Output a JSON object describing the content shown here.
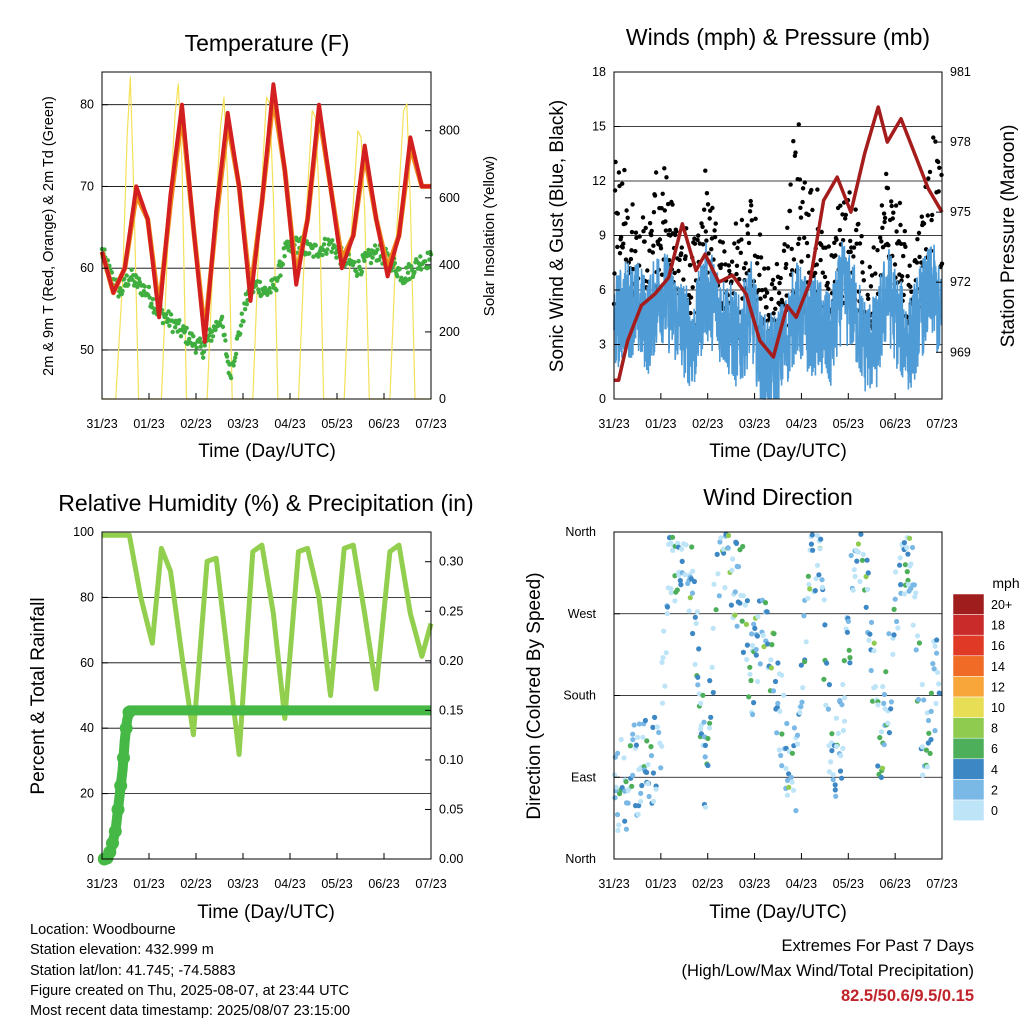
{
  "colors": {
    "temp2m": "#d31f1f",
    "temp9m": "#f08a1c",
    "dewpoint": "#3fae3f",
    "solar": "#f4e15a",
    "wind": "#4f9bd6",
    "gust": "#000000",
    "pressure": "#a51c1c",
    "rh": "#92cf4f",
    "precip": "#45b845",
    "extremes": "#c0232b"
  },
  "x_ticks": [
    "31/23",
    "01/23",
    "02/23",
    "03/23",
    "04/23",
    "05/23",
    "06/23",
    "07/23"
  ],
  "footer": {
    "location": "Location: Woodbourne",
    "elevation": "Station elevation: 432.999 m",
    "latlon": "Station lat/lon: 41.745; -74.5883",
    "created": "Figure created on Thu, 2025-08-07, at 23:44 UTC",
    "timestamp": "Most recent data timestamp: 2025/08/07 23:15:00"
  },
  "extremes": {
    "title": "Extremes For Past 7 Days",
    "subtitle": "(High/Low/Max Wind/Total Precipitation)",
    "values": "82.5/50.6/9.5/0.15"
  },
  "chart_data": [
    {
      "type": "line",
      "title": "Temperature (F)",
      "xlabel": "Time (Day/UTC)",
      "ylabel": "2m & 9m T (Red, Orange) & 2m Td (Green)",
      "y2label": "Solar Insolation (Yellow)",
      "ylim": [
        44,
        84
      ],
      "y_ticks": [
        50,
        60,
        70,
        80
      ],
      "y2lim": [
        0,
        975
      ],
      "y2_ticks": [
        0,
        200,
        400,
        600,
        800
      ],
      "grid": true,
      "x_days": [
        0,
        1,
        2,
        3,
        4,
        5,
        6,
        7
      ],
      "series": [
        {
          "key": "t2m",
          "x": [
            0,
            0.25,
            0.5,
            0.75,
            1,
            1.25,
            1.5,
            1.75,
            2,
            2.25,
            2.5,
            2.75,
            3,
            3.25,
            3.5,
            3.75,
            4,
            4.25,
            4.5,
            4.75,
            5,
            5.25,
            5.5,
            5.75,
            6,
            6.25,
            6.5,
            6.75,
            7,
            7.2
          ],
          "values": [
            62,
            57,
            60,
            70,
            66,
            54,
            69,
            80,
            65,
            51,
            67,
            79,
            70,
            56,
            68,
            82.5,
            72,
            58,
            66,
            80,
            70,
            60,
            64,
            75,
            66,
            59,
            64,
            76,
            70,
            70
          ]
        },
        {
          "key": "t9m",
          "x": [
            0,
            0.25,
            0.5,
            0.75,
            1,
            1.25,
            1.5,
            1.75,
            2,
            2.25,
            2.5,
            2.75,
            3,
            3.25,
            3.5,
            3.75,
            4,
            4.25,
            4.5,
            4.75,
            5,
            5.25,
            5.5,
            5.75,
            6,
            6.25,
            6.5,
            6.75,
            7,
            7.2
          ],
          "values": [
            62,
            57,
            60,
            69,
            66,
            55,
            68,
            79,
            65,
            52,
            66,
            78,
            70,
            57,
            68,
            81,
            72,
            59,
            66,
            79,
            70,
            61,
            64,
            74,
            66,
            60,
            64,
            75,
            70,
            70
          ]
        },
        {
          "key": "td2m",
          "x": [
            0,
            0.2,
            0.4,
            0.6,
            0.8,
            1,
            1.2,
            1.4,
            1.6,
            1.8,
            2,
            2.2,
            2.4,
            2.6,
            2.8,
            3,
            3.2,
            3.4,
            3.6,
            3.8,
            4,
            4.3,
            4.6,
            5,
            5.3,
            5.6,
            6,
            6.3,
            6.6,
            7,
            7.2
          ],
          "values": [
            62,
            59,
            57,
            59,
            58,
            57,
            55,
            54,
            53,
            52,
            51,
            50,
            52,
            54,
            47,
            52,
            57,
            58,
            57,
            58,
            62,
            63,
            62,
            63,
            61,
            60,
            62,
            61,
            59,
            61,
            61
          ]
        },
        {
          "key": "solar",
          "x": [
            0,
            0.3,
            0.45,
            0.55,
            0.62,
            0.7,
            0.8,
            1.3,
            1.45,
            1.6,
            1.67,
            1.75,
            1.85,
            2.3,
            2.45,
            2.6,
            2.67,
            2.75,
            2.85,
            3.3,
            3.45,
            3.6,
            3.67,
            3.75,
            3.85,
            4.3,
            4.45,
            4.6,
            4.67,
            4.75,
            4.85,
            5.3,
            5.45,
            5.6,
            5.67,
            5.75,
            5.85,
            6.3,
            6.45,
            6.6,
            6.67,
            6.75,
            6.85,
            7.0,
            7.2
          ],
          "values": [
            0,
            0,
            350,
            780,
            960,
            600,
            0,
            0,
            500,
            850,
            940,
            700,
            0,
            0,
            480,
            820,
            900,
            650,
            0,
            0,
            520,
            900,
            880,
            600,
            0,
            0,
            500,
            860,
            840,
            620,
            0,
            0,
            480,
            800,
            780,
            560,
            0,
            0,
            500,
            860,
            880,
            580,
            0,
            0,
            0
          ]
        }
      ]
    },
    {
      "type": "line",
      "title": "Winds (mph) & Pressure (mb)",
      "xlabel": "Time (Day/UTC)",
      "ylabel": "Sonic Wind & Gust (Blue, Black)",
      "y2label": "Station Pressure (Maroon)",
      "ylim": [
        0,
        18
      ],
      "y_ticks": [
        0,
        3,
        6,
        9,
        12,
        15,
        18
      ],
      "y2lim": [
        967,
        981
      ],
      "y2_ticks": [
        969,
        972,
        975,
        978,
        981
      ],
      "grid": true,
      "series": [
        {
          "key": "wind_mean",
          "x": [
            0,
            0.25,
            0.5,
            0.75,
            1,
            1.25,
            1.5,
            1.75,
            2,
            2.25,
            2.5,
            2.75,
            3,
            3.25,
            3.5,
            3.75,
            4,
            4.25,
            4.5,
            4.75,
            5,
            5.25,
            5.5,
            5.75,
            6,
            6.25,
            6.5,
            6.75,
            7,
            7.2
          ],
          "values": [
            4,
            5,
            5,
            4,
            6,
            5,
            4,
            3,
            6,
            5,
            4,
            3,
            5,
            2,
            2,
            3,
            5,
            4,
            4,
            3,
            6,
            5,
            3,
            3,
            6,
            4,
            3,
            5,
            6,
            4
          ]
        },
        {
          "key": "gust_max",
          "x": [
            0,
            0.25,
            0.5,
            0.75,
            1,
            1.25,
            1.5,
            1.75,
            2,
            2.25,
            2.5,
            2.75,
            3,
            3.25,
            3.5,
            3.75,
            4,
            4.25,
            4.5,
            4.75,
            5,
            5.25,
            5.5,
            5.75,
            6,
            6.25,
            6.5,
            6.75,
            7,
            7.2
          ],
          "values": [
            14,
            12,
            10,
            10,
            13,
            11,
            9,
            9,
            13,
            10,
            8,
            10,
            11,
            8,
            7,
            9,
            16,
            12,
            11,
            8,
            12,
            12,
            7,
            9,
            13,
            11,
            8,
            11,
            15,
            12
          ]
        },
        {
          "key": "pressure",
          "x": [
            0,
            0.1,
            0.3,
            0.6,
            0.9,
            1.2,
            1.5,
            1.8,
            2.0,
            2.3,
            2.6,
            2.9,
            3.2,
            3.5,
            3.8,
            4.0,
            4.3,
            4.6,
            4.9,
            5.2,
            5.5,
            5.8,
            6.0,
            6.3,
            6.6,
            6.9,
            7.2
          ],
          "values": [
            967.8,
            967.8,
            969.5,
            971,
            971.5,
            972.2,
            974.5,
            972.5,
            973.2,
            972,
            972.3,
            971.5,
            969.5,
            968.8,
            971,
            970.5,
            972,
            975.5,
            976.5,
            975,
            977.5,
            979.5,
            978,
            979,
            977.5,
            976,
            975
          ]
        }
      ]
    },
    {
      "type": "line",
      "title": "Relative Humidity (%) & Precipitation (in)",
      "xlabel": "Time (Day/UTC)",
      "ylabel": "Percent & Total Rainfall",
      "ylim": [
        0,
        100
      ],
      "y_ticks": [
        0,
        20,
        40,
        60,
        80,
        100
      ],
      "y2lim": [
        0,
        0.33
      ],
      "y2_ticks": [
        "0.00",
        "0.05",
        "0.10",
        "0.15",
        "0.20",
        "0.25",
        "0.30"
      ],
      "grid": true,
      "series": [
        {
          "key": "rh",
          "x": [
            0,
            0.3,
            0.6,
            0.85,
            1.1,
            1.3,
            1.5,
            1.75,
            2.0,
            2.3,
            2.5,
            2.75,
            3.0,
            3.3,
            3.5,
            3.75,
            4.0,
            4.3,
            4.5,
            4.75,
            5.0,
            5.3,
            5.5,
            5.75,
            6.0,
            6.3,
            6.5,
            6.75,
            7.0,
            7.2
          ],
          "values": [
            99,
            99,
            99,
            80,
            66,
            95,
            88,
            62,
            38,
            91,
            92,
            62,
            32,
            94,
            96,
            75,
            43,
            94,
            95,
            80,
            50,
            95,
            96,
            75,
            52,
            94,
            96,
            75,
            62,
            72
          ]
        },
        {
          "key": "precip_total",
          "x": [
            0,
            0.1,
            0.2,
            0.3,
            0.35,
            0.4,
            0.45,
            0.5,
            0.55,
            0.6,
            0.65,
            7.2
          ],
          "values": [
            0,
            0.0,
            0.01,
            0.03,
            0.05,
            0.07,
            0.09,
            0.12,
            0.14,
            0.15,
            0.15,
            0.15
          ]
        }
      ]
    },
    {
      "type": "scatter",
      "title": "Wind Direction",
      "xlabel": "Time (Day/UTC)",
      "ylabel": "Direction (Colored By Speed)",
      "y_ticks": [
        "North",
        "East",
        "South",
        "West",
        "North"
      ],
      "ylim": [
        0,
        360
      ],
      "legend": {
        "title": "mph",
        "labels": [
          "20+",
          "18",
          "16",
          "14",
          "12",
          "10",
          "8",
          "6",
          "4",
          "2",
          "0"
        ],
        "colors": [
          "#a01d1d",
          "#c92a2a",
          "#e03a26",
          "#ef6b26",
          "#f8a63a",
          "#e8de55",
          "#8fcb4f",
          "#4daf5a",
          "#3d88c4",
          "#7ab8e5",
          "#bee4f8"
        ],
        "placement": "right"
      },
      "series": [
        {
          "key": "direction_by_day",
          "x": [
            0.2,
            0.5,
            1.0,
            1.2,
            1.5,
            1.7,
            2.0,
            2.3,
            2.5,
            2.8,
            3.0,
            3.3,
            3.5,
            3.8,
            4.0,
            4.3,
            4.5,
            4.8,
            5.0,
            5.3,
            5.5,
            5.8,
            6.0,
            6.3,
            6.5,
            6.8,
            7.0
          ],
          "values": [
            85,
            95,
            110,
            340,
            330,
            320,
            100,
            330,
            335,
            300,
            200,
            260,
            210,
            120,
            90,
            340,
            345,
            80,
            140,
            350,
            335,
            130,
            170,
            345,
            340,
            120,
            190
          ]
        }
      ]
    }
  ]
}
